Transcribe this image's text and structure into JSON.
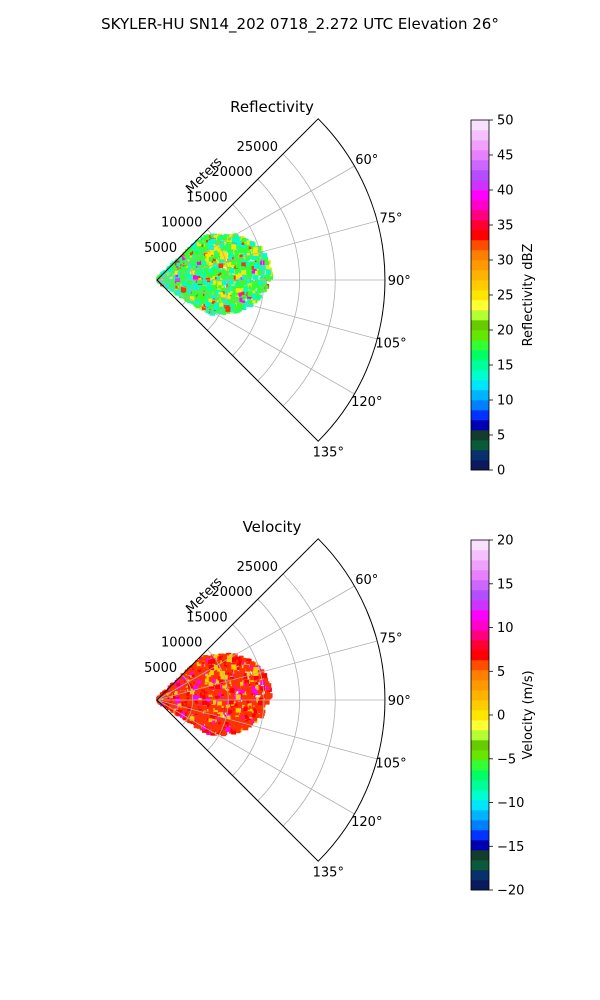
{
  "figure": {
    "title": "SKYLER-HU  SN14_202  0718_2.272 UTC Elevation 26°"
  },
  "chart_data": [
    {
      "type": "polar-sector",
      "title": "Reflectivity",
      "range_label": "Meters",
      "radial_ticks": [
        5000,
        10000,
        15000,
        20000,
        25000
      ],
      "range_max": 32000,
      "angle_ticks": [
        60,
        75,
        90,
        105,
        120,
        135
      ],
      "theta_range": [
        45,
        135
      ],
      "grid": true,
      "colorbar": {
        "label": "Reflectivity dBZ",
        "min": 0,
        "max": 50,
        "ticks": [
          0,
          5,
          10,
          15,
          20,
          25,
          30,
          35,
          40,
          45,
          50
        ],
        "palette": [
          "#0a1a5c",
          "#08306b",
          "#0a5a3a",
          "#123d2d",
          "#0000b3",
          "#0033ff",
          "#0080ff",
          "#00b3ff",
          "#00e6ff",
          "#00ffcc",
          "#00ff99",
          "#00ff66",
          "#33ff33",
          "#66e600",
          "#66cc00",
          "#b3ff33",
          "#ffff33",
          "#ffe600",
          "#ffcc00",
          "#ffb300",
          "#ff9900",
          "#ff8000",
          "#ff4d00",
          "#ff0000",
          "#ff0033",
          "#ff0080",
          "#ff00cc",
          "#ff00ff",
          "#cc33ff",
          "#b34dff",
          "#cc66ff",
          "#e680ff",
          "#f0a0ff",
          "#f5c0ff",
          "#fae0ff"
        ],
        "colors": {
          "low": "#00ffd0",
          "mid": "#33ff33",
          "high": "#ffe600",
          "peak": "#ff3300",
          "max": "#ff00ff"
        }
      }
    },
    {
      "type": "polar-sector",
      "title": "Velocity",
      "range_label": "Meters",
      "radial_ticks": [
        5000,
        10000,
        15000,
        20000,
        25000
      ],
      "range_max": 32000,
      "angle_ticks": [
        60,
        75,
        90,
        105,
        120,
        135
      ],
      "theta_range": [
        45,
        135
      ],
      "grid": true,
      "colorbar": {
        "label": "Velocity (m/s)",
        "min": -20,
        "max": 20,
        "ticks": [
          -20,
          -15,
          -10,
          -5,
          0,
          5,
          10,
          15,
          20
        ],
        "palette": [
          "#0a1a5c",
          "#08306b",
          "#0a5a3a",
          "#123d2d",
          "#0000b3",
          "#0033ff",
          "#0080ff",
          "#00b3ff",
          "#00e6ff",
          "#00ffcc",
          "#00ff99",
          "#00ff66",
          "#33ff33",
          "#66e600",
          "#66cc00",
          "#b3ff33",
          "#ffff33",
          "#ffe600",
          "#ffcc00",
          "#ffb300",
          "#ff9900",
          "#ff8000",
          "#ff4d00",
          "#ff0000",
          "#ff0033",
          "#ff0080",
          "#ff00cc",
          "#ff00ff",
          "#cc33ff",
          "#b34dff",
          "#cc66ff",
          "#e680ff",
          "#f0a0ff",
          "#f5c0ff",
          "#fae0ff"
        ],
        "colors": {
          "low": "#ffcc00",
          "mid": "#ff3300",
          "high": "#ff0000",
          "peak": "#ff00ff",
          "max": "#ff00ff"
        }
      }
    }
  ]
}
